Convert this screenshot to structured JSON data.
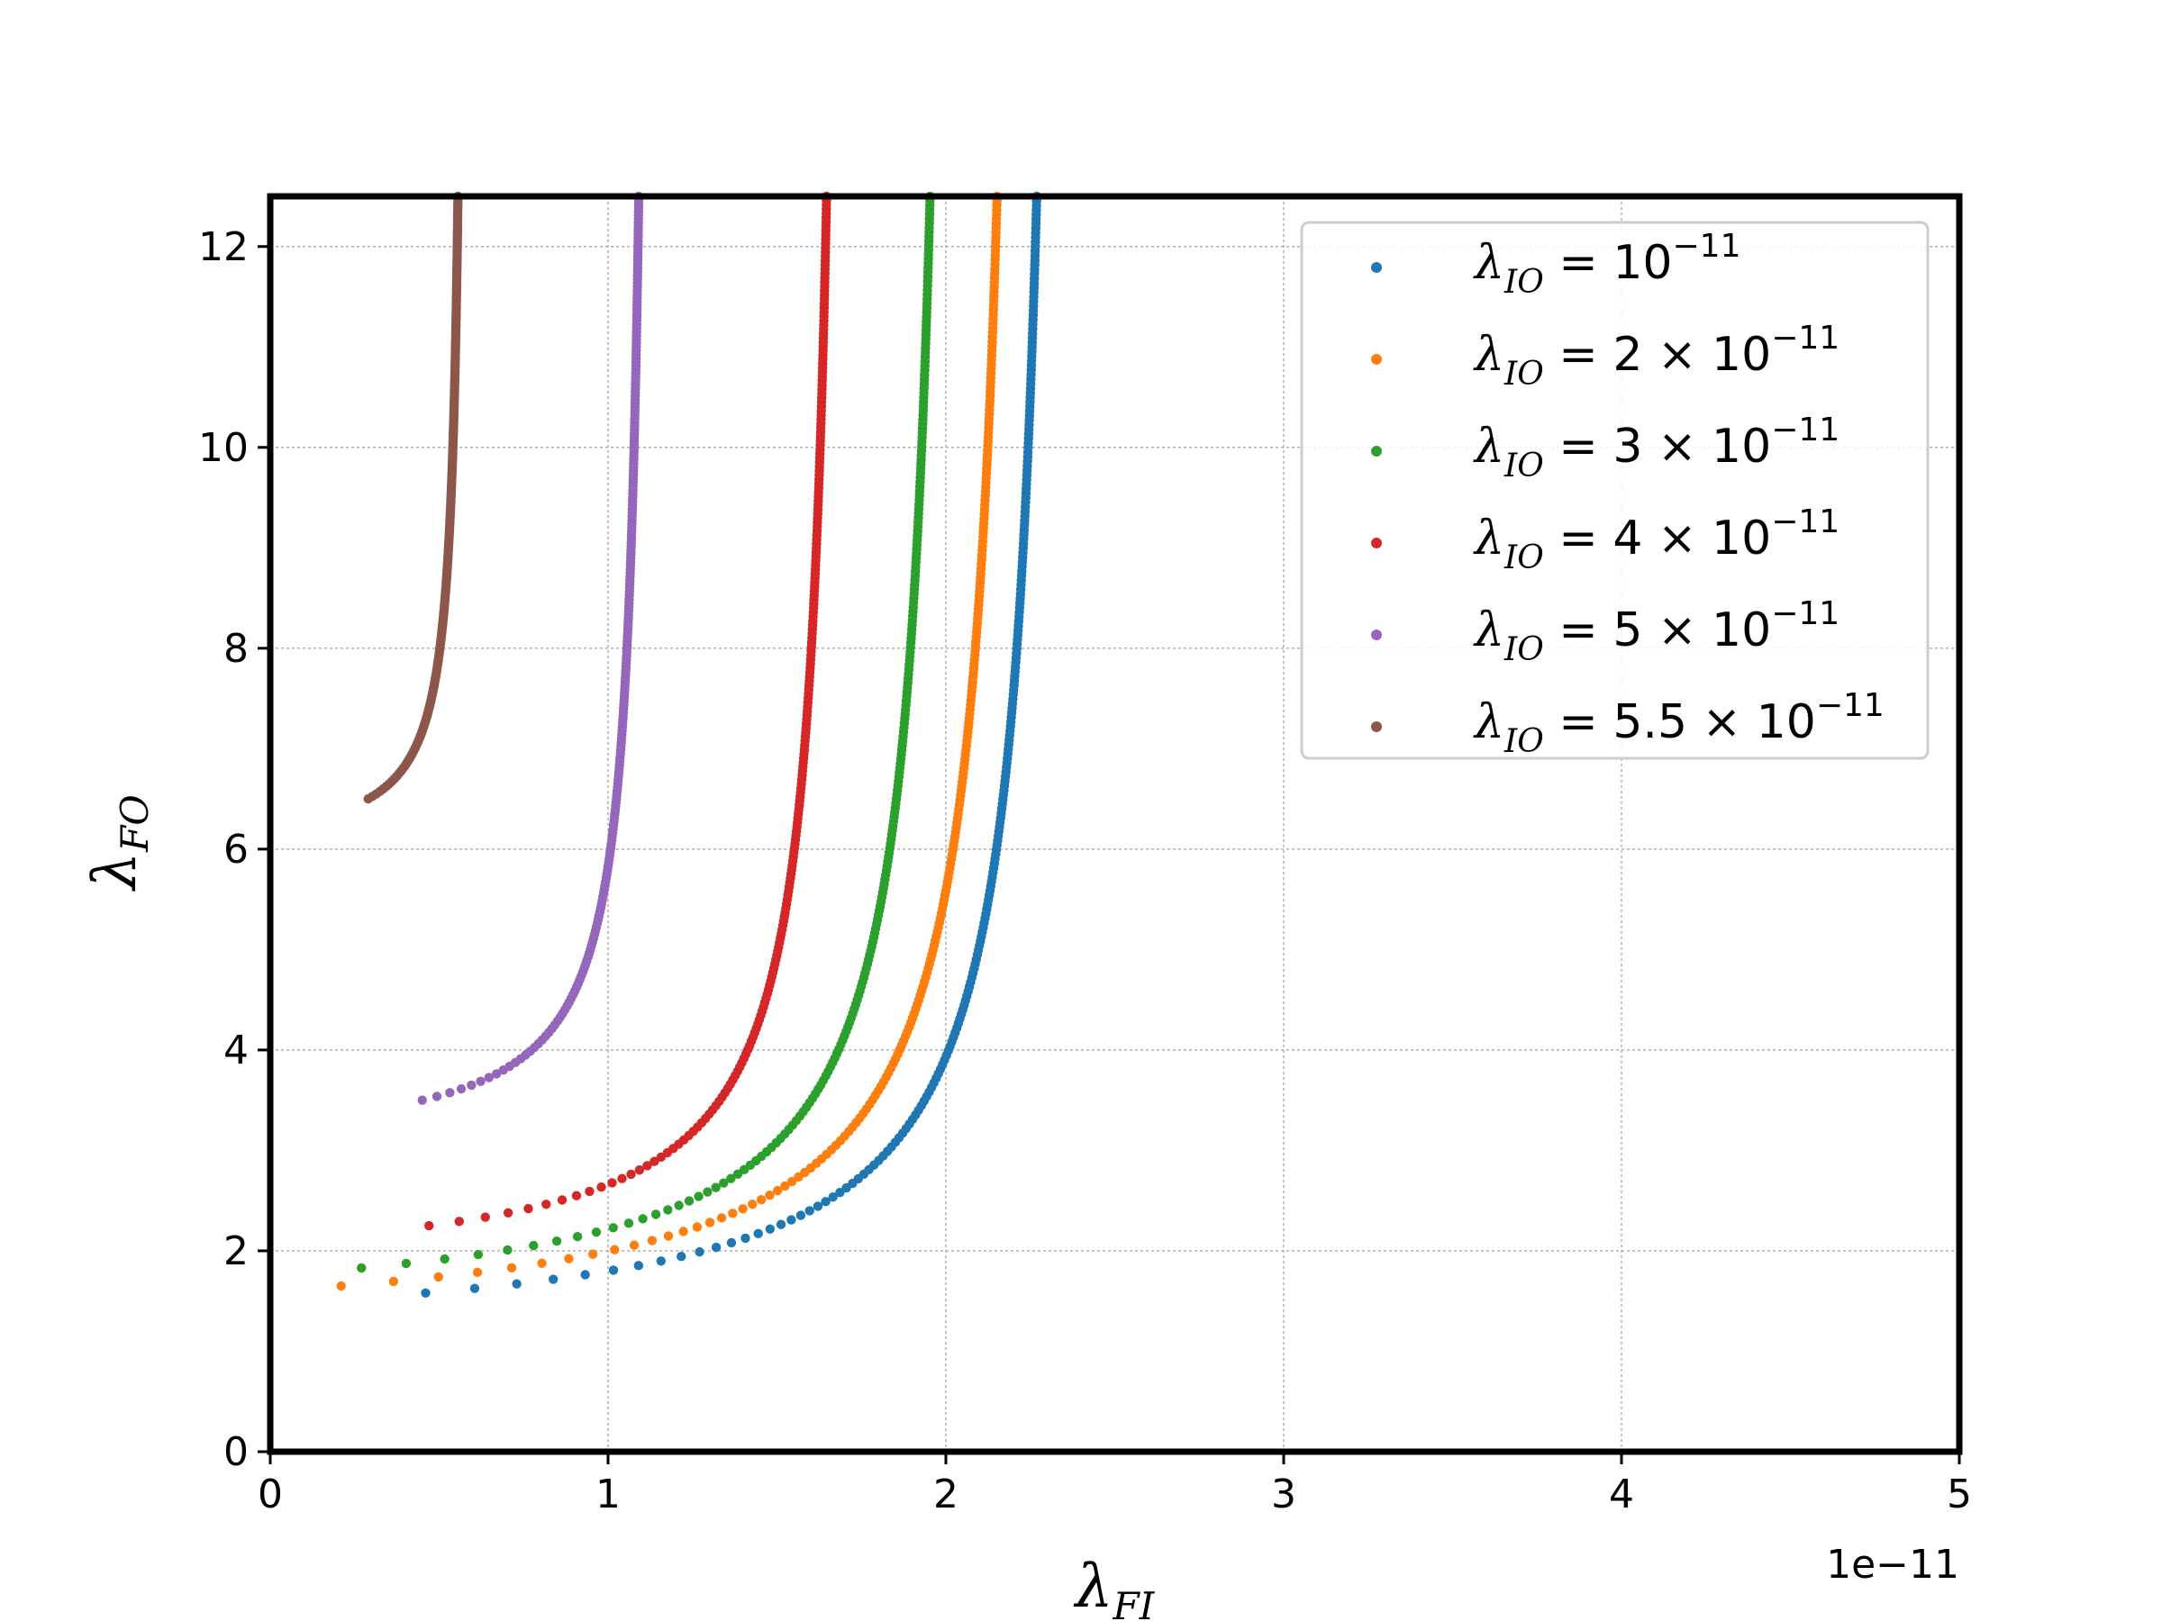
{
  "chart_data": {
    "type": "scatter",
    "title": "",
    "xlabel": {
      "symbol": "λ",
      "sub": "FI"
    },
    "ylabel": {
      "symbol": "λ",
      "sub": "FO"
    },
    "x_offset_label": "1e−11",
    "xlim": [
      0,
      5
    ],
    "ylim": [
      0,
      12.5
    ],
    "x_ticks": [
      "0",
      "1",
      "2",
      "3",
      "4",
      "5"
    ],
    "x_tick_values": [
      0,
      1,
      2,
      3,
      4,
      5
    ],
    "y_ticks": [
      "0",
      "2",
      "4",
      "6",
      "8",
      "10",
      "12"
    ],
    "y_tick_values": [
      0,
      2,
      4,
      6,
      8,
      10,
      12
    ],
    "grid": true,
    "legend_position": "upper-right",
    "series": [
      {
        "name": "λIO = 10^−11",
        "label_symbol": "λ",
        "label_sub": "IO",
        "label_eq": " = ",
        "label_coef": "",
        "label_base": "10",
        "label_exp": "−11",
        "color": "#1f77b4",
        "x_asymptote": 2.36,
        "x_min": 0.46,
        "y_min": 1.58,
        "y_top": 12.5
      },
      {
        "name": "λIO = 2 × 10^−11",
        "label_symbol": "λ",
        "label_sub": "IO",
        "label_eq": " = ",
        "label_coef": "2 × ",
        "label_base": "10",
        "label_exp": "−11",
        "color": "#ff7f0e",
        "x_asymptote": 2.25,
        "x_min": 0.21,
        "y_min": 1.65,
        "y_top": 12.5
      },
      {
        "name": "λIO = 3 × 10^−11",
        "label_symbol": "λ",
        "label_sub": "IO",
        "label_eq": " = ",
        "label_coef": "3 × ",
        "label_base": "10",
        "label_exp": "−11",
        "color": "#2ca02c",
        "x_asymptote": 2.04,
        "x_min": 0.27,
        "y_min": 1.83,
        "y_top": 12.5
      },
      {
        "name": "λIO = 4 × 10^−11",
        "label_symbol": "λ",
        "label_sub": "IO",
        "label_eq": " = ",
        "label_coef": "4 × ",
        "label_base": "10",
        "label_exp": "−11",
        "color": "#d62728",
        "x_asymptote": 1.71,
        "x_min": 0.47,
        "y_min": 2.25,
        "y_top": 12.5
      },
      {
        "name": "λIO = 5 × 10^−11",
        "label_symbol": "λ",
        "label_sub": "IO",
        "label_eq": " = ",
        "label_coef": "5 × ",
        "label_base": "10",
        "label_exp": "−11",
        "color": "#9467bd",
        "x_asymptote": 1.13,
        "x_min": 0.45,
        "y_min": 3.5,
        "y_top": 12.5
      },
      {
        "name": "λIO = 5.5 × 10^−11",
        "label_symbol": "λ",
        "label_sub": "IO",
        "label_eq": " = ",
        "label_coef": "5.5 × ",
        "label_base": "10",
        "label_exp": "−11",
        "color": "#8c564b",
        "x_asymptote": 0.58,
        "x_min": 0.29,
        "y_min": 6.5,
        "y_top": 12.5
      }
    ]
  }
}
